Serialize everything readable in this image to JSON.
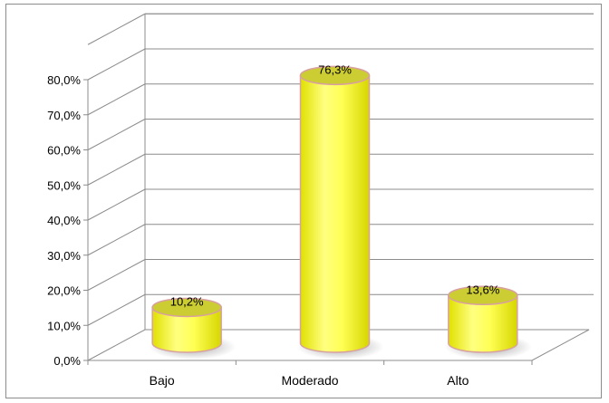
{
  "chart_data": {
    "type": "bar",
    "style": "3d-cylinder",
    "categories": [
      "Bajo",
      "Moderado",
      "Alto"
    ],
    "values": [
      10.2,
      76.3,
      13.6
    ],
    "data_labels": [
      "10,2%",
      "76,3%",
      "13,6%"
    ],
    "y_ticks": [
      "0,0%",
      "10,0%",
      "20,0%",
      "30,0%",
      "40,0%",
      "50,0%",
      "60,0%",
      "70,0%",
      "80,0%"
    ],
    "ylim": [
      0,
      80
    ],
    "grid": true,
    "legend": "none",
    "title": "",
    "xlabel": "",
    "ylabel": "",
    "colors": {
      "bar_fill": "#ffff66",
      "bar_top": "#cccc33",
      "bar_edge": "#d9a0a0",
      "grid": "#8c8c8c"
    }
  }
}
